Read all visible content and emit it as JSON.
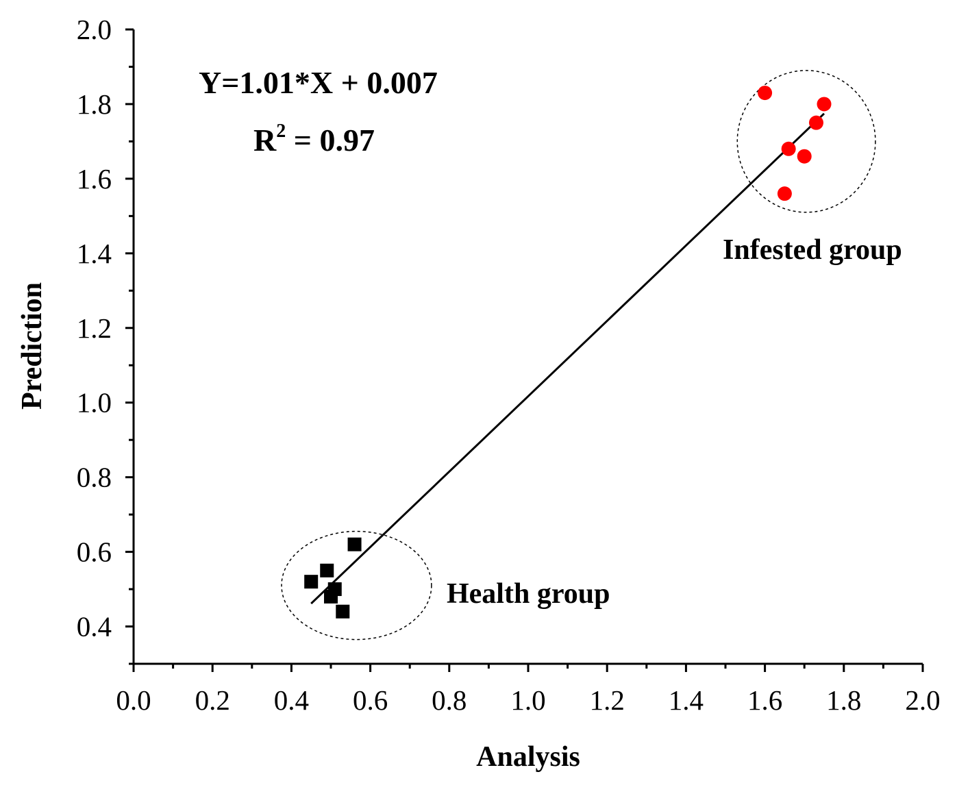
{
  "chart_data": {
    "type": "scatter",
    "xlabel": "Analysis",
    "ylabel": "Prediction",
    "xlim": [
      0.0,
      2.0
    ],
    "ylim": [
      0.3,
      2.0
    ],
    "x_ticks": [
      "0.0",
      "0.2",
      "0.4",
      "0.6",
      "0.8",
      "1.0",
      "1.2",
      "1.4",
      "1.6",
      "1.8",
      "2.0"
    ],
    "y_ticks": [
      "0.4",
      "0.6",
      "0.8",
      "1.0",
      "1.2",
      "1.4",
      "1.6",
      "1.8",
      "2.0"
    ],
    "grid": false,
    "series": [
      {
        "name": "Health group",
        "marker": "square",
        "color": "#000000",
        "points": [
          {
            "x": 0.45,
            "y": 0.52
          },
          {
            "x": 0.49,
            "y": 0.55
          },
          {
            "x": 0.51,
            "y": 0.5
          },
          {
            "x": 0.5,
            "y": 0.48
          },
          {
            "x": 0.53,
            "y": 0.44
          },
          {
            "x": 0.56,
            "y": 0.62
          }
        ]
      },
      {
        "name": "Infested group",
        "marker": "circle",
        "color": "#ff0000",
        "points": [
          {
            "x": 1.6,
            "y": 1.83
          },
          {
            "x": 1.75,
            "y": 1.8
          },
          {
            "x": 1.73,
            "y": 1.75
          },
          {
            "x": 1.66,
            "y": 1.68
          },
          {
            "x": 1.7,
            "y": 1.66
          },
          {
            "x": 1.65,
            "y": 1.56
          }
        ]
      }
    ],
    "fit_line": {
      "slope": 1.01,
      "intercept": 0.007,
      "x_range": [
        0.45,
        1.75
      ],
      "color": "#000000"
    },
    "groups": [
      {
        "label": "Health group",
        "center": [
          0.565,
          0.51
        ],
        "radius": [
          0.19,
          0.145
        ]
      },
      {
        "label": "Infested group",
        "center": [
          1.705,
          1.7
        ],
        "radius": [
          0.175,
          0.19
        ]
      }
    ],
    "annotations": {
      "equation": "Y=1.01*X + 0.007",
      "r2_prefix": "R",
      "r2_sup": "2",
      "r2_value": " = 0.97"
    }
  }
}
